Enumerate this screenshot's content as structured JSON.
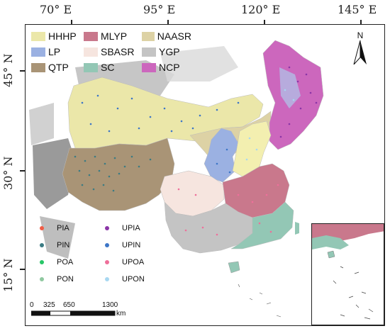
{
  "graticule": {
    "lon_labels": [
      "70° E",
      "95° E",
      "120° E",
      "145° E"
    ],
    "lat_labels": [
      "45° N",
      "30° N",
      "15° N"
    ]
  },
  "region_legend": [
    {
      "label": "HHHP",
      "color": "#ebe7a9"
    },
    {
      "label": "MLYP",
      "color": "#c9788c"
    },
    {
      "label": "NAASR",
      "color": "#ddd2a5"
    },
    {
      "label": "LP",
      "color": "#9bb1e2"
    },
    {
      "label": "SBASR",
      "color": "#f6e5df"
    },
    {
      "label": "YGP",
      "color": "#c4c4c4"
    },
    {
      "label": "QTP",
      "color": "#a99476"
    },
    {
      "label": "SC",
      "color": "#93c7b5"
    },
    {
      "label": "NCP",
      "color": "#cc67bd"
    }
  ],
  "point_legend": [
    {
      "label": "PIA",
      "color": "#f05d46"
    },
    {
      "label": "UPIA",
      "color": "#8b35a7"
    },
    {
      "label": "PIN",
      "color": "#3b7b83"
    },
    {
      "label": "UPIN",
      "color": "#3d76c7"
    },
    {
      "label": "POA",
      "color": "#27c667"
    },
    {
      "label": "UPOA",
      "color": "#ee6f9a"
    },
    {
      "label": "PON",
      "color": "#8fc8a0"
    },
    {
      "label": "UPON",
      "color": "#a8d8f1"
    }
  ],
  "north_arrow": {
    "letter": "N",
    "icon": "north-arrow-icon"
  },
  "scalebar": {
    "ticks": [
      "0",
      "325",
      "650",
      "1300"
    ],
    "unit": "km"
  }
}
